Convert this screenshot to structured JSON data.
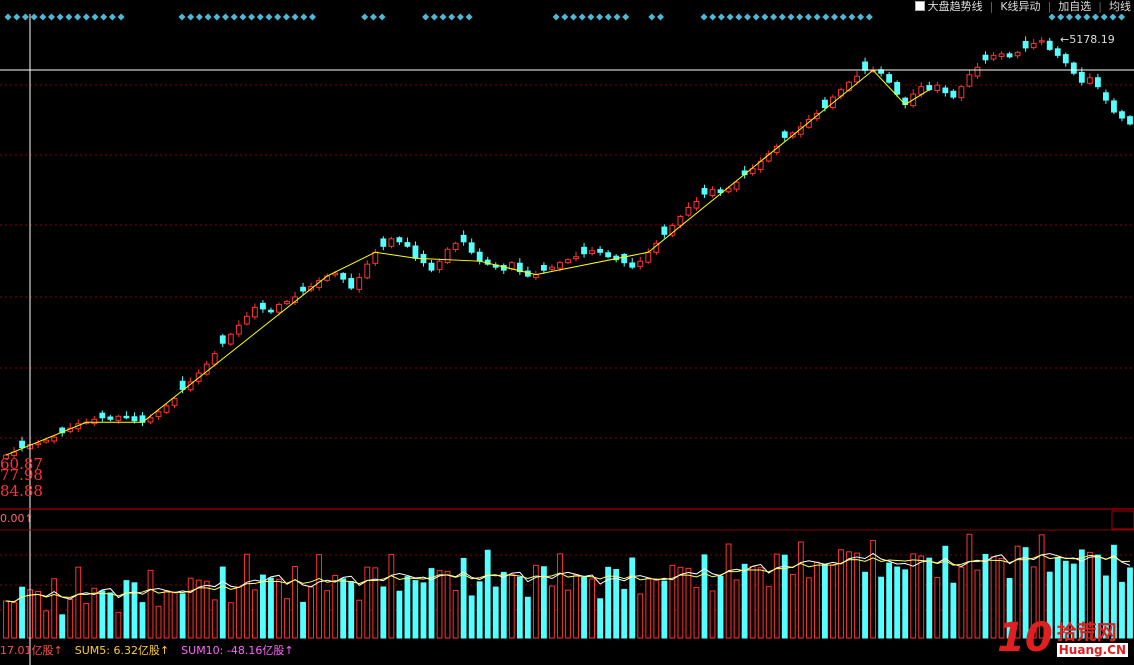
{
  "toolbar": {
    "items": [
      "大盘趋势线",
      "K线异动",
      "加自选",
      "均线"
    ]
  },
  "price_labels": {
    "high": "5178.19",
    "ma1": "60.87",
    "ma2": "77.98",
    "ma3": "84.88"
  },
  "volume": {
    "header": "0.00",
    "vol_label": "17.01亿股",
    "sum5_label": "SUM5: 6.32亿股",
    "sum10_label": "SUM10: -48.16亿股"
  },
  "watermark": {
    "num": "10",
    "cn": "拾荒网",
    "en": "Huang.CN"
  },
  "colors": {
    "up": "#ff3232",
    "down": "#54ffff",
    "trend": "#ffff00",
    "grid": "#8b0000",
    "diamond": "#4fb7d6"
  },
  "chart_data": {
    "type": "candlestick",
    "high_marker": 5178.19,
    "close": [
      2400,
      2420,
      2450,
      2470,
      2480,
      2500,
      2520,
      2550,
      2580,
      2610,
      2620,
      2640,
      2650,
      2640,
      2660,
      2650,
      2630,
      2620,
      2650,
      2690,
      2730,
      2780,
      2840,
      2890,
      2950,
      3010,
      3080,
      3150,
      3210,
      3270,
      3330,
      3390,
      3380,
      3360,
      3410,
      3430,
      3460,
      3500,
      3530,
      3570,
      3600,
      3620,
      3580,
      3520,
      3590,
      3680,
      3760,
      3800,
      3850,
      3830,
      3800,
      3720,
      3690,
      3640,
      3700,
      3780,
      3820,
      3830,
      3760,
      3700,
      3680,
      3660,
      3640,
      3690,
      3630,
      3600,
      3610,
      3640,
      3660,
      3690,
      3710,
      3730,
      3750,
      3770,
      3760,
      3730,
      3710,
      3690,
      3660,
      3700,
      3760,
      3820,
      3880,
      3940,
      4000,
      4060,
      4100,
      4150,
      4180,
      4160,
      4190,
      4230,
      4280,
      4320,
      4370,
      4420,
      4470,
      4530,
      4560,
      4600,
      4650,
      4690,
      4730,
      4800,
      4850,
      4900,
      4940,
      4980,
      4980,
      4960,
      4900,
      4820,
      4750,
      4820,
      4870,
      4850,
      4880,
      4830,
      4800,
      4870,
      4950,
      5000,
      5050,
      5080,
      5090,
      5070,
      5100,
      5130,
      5160,
      5178,
      5120,
      5080,
      5030,
      4960,
      4900,
      4930,
      4870,
      4780,
      4700,
      4660,
      4620
    ]
  }
}
